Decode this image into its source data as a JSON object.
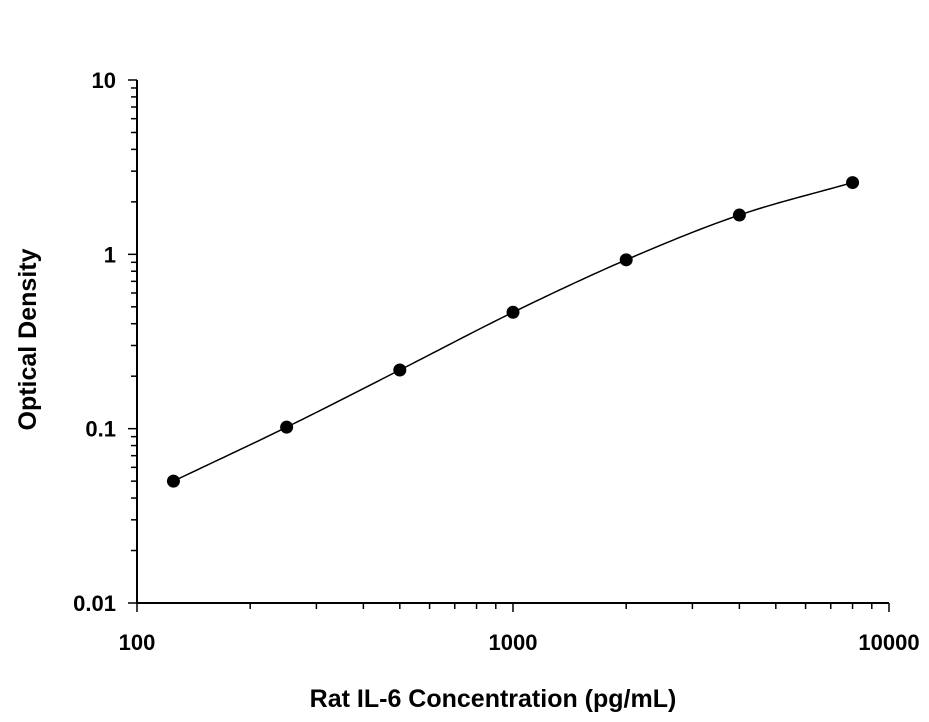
{
  "chart_data": {
    "type": "scatter",
    "xlabel": "Rat IL-6 Concentration (pg/mL)",
    "ylabel": "Optical Density",
    "x_scale": "log",
    "y_scale": "log",
    "xlim": [
      100,
      10000
    ],
    "ylim": [
      0.01,
      10
    ],
    "x_tick_labels": [
      "100",
      "1000",
      "10000"
    ],
    "y_tick_labels": [
      "0.01",
      "0.1",
      "1",
      "10"
    ],
    "grid": false,
    "series": [
      {
        "x": [
          125,
          250,
          500,
          1000,
          2000,
          4000,
          8000
        ],
        "y": [
          0.05,
          0.102,
          0.217,
          0.465,
          0.93,
          1.68,
          2.58
        ],
        "marker": "circle",
        "fit_line": true,
        "color": "#000000"
      }
    ]
  }
}
